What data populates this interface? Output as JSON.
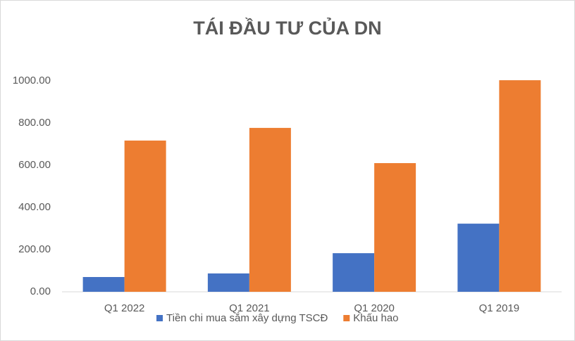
{
  "chart_data": {
    "type": "bar",
    "title": "TÁI ĐẦU TƯ CỦA DN",
    "categories": [
      "Q1 2022",
      "Q1 2021",
      "Q1 2020",
      "Q1 2019"
    ],
    "series": [
      {
        "name": "Tiền chi mua sắm xây dựng TSCĐ",
        "color": "#4472c4",
        "values": [
          70,
          87,
          183,
          323
        ]
      },
      {
        "name": "Khấu hao",
        "color": "#ed7d31",
        "values": [
          717,
          777,
          610,
          1003
        ]
      }
    ],
    "ylim": [
      0,
      1000
    ],
    "yticks": [
      {
        "value": 0,
        "label": "0.00"
      },
      {
        "value": 200,
        "label": "200.00"
      },
      {
        "value": 400,
        "label": "400.00"
      },
      {
        "value": 600,
        "label": "600.00"
      },
      {
        "value": 800,
        "label": "800.00"
      },
      {
        "value": 1000,
        "label": "1000.00"
      }
    ],
    "grid": false,
    "legend": "bottom"
  }
}
